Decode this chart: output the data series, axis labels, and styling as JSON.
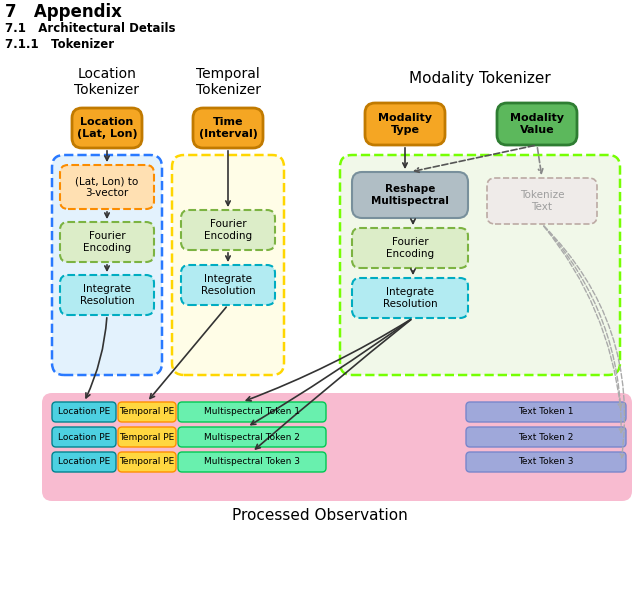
{
  "title_text": "7   Appendix",
  "subtitle1": "7.1   Architectural Details",
  "subtitle2": "7.1.1   Tokenizer",
  "loc_tok_title": "Location\nTokenizer",
  "temp_tok_title": "Temporal\nTokenizer",
  "mod_tok_title": "Modality Tokenizer",
  "loc_input_label": "Location\n(Lat, Lon)",
  "time_input_label": "Time\n(Interval)",
  "mod_type_label": "Modality\nType",
  "mod_val_label": "Modality\nValue",
  "loc_step1": "(Lat, Lon) to\n3-vector",
  "loc_step2": "Fourier\nEncoding",
  "loc_step3": "Integrate\nResolution",
  "temp_step1": "Fourier\nEncoding",
  "temp_step2": "Integrate\nResolution",
  "mod_step1": "Reshape\nMultispectral",
  "mod_step2": "Fourier\nEncoding",
  "mod_step3": "Integrate\nResolution",
  "mod_text_step": "Tokenize\nText",
  "proc_obs_label": "Processed Observation",
  "row_labels": [
    [
      "Location PE",
      "Temporal PE",
      "Multispectral Token 1"
    ],
    [
      "Location PE",
      "Temporal PE",
      "Multispectral Token 2"
    ],
    [
      "Location PE",
      "Temporal PE",
      "Multispectral Token 3"
    ]
  ],
  "text_tokens": [
    "Text Token 1",
    "Text Token 2",
    "Text Token 3"
  ],
  "color_orange": "#F5A623",
  "color_orange_edge": "#C17A00",
  "color_green_bright": "#5CB85C",
  "color_green_bright_edge": "#2E7D32",
  "color_cyan_box": "#B2EBF2",
  "color_cyan_edge": "#00ACC1",
  "color_light_green_box": "#DCEDC8",
  "color_light_green_edge": "#7CB342",
  "color_light_orange_box": "#FFE0B2",
  "color_light_orange_edge": "#FB8C00",
  "color_blue_outer": "#2979FF",
  "color_blue_outer_bg": "#E3F2FD",
  "color_yellow_outer": "#FFD600",
  "color_yellow_outer_bg": "#FFFDE7",
  "color_green_outer": "#76FF03",
  "color_green_outer_bg": "#F1F8E9",
  "color_gray_blue_box": "#B0BEC5",
  "color_gray_blue_edge": "#78909C",
  "color_tokenize_box": "#EFEBE9",
  "color_tokenize_edge": "#BCAAA4",
  "color_pink_bg": "#F8BBD0",
  "color_loc_pe": "#4DD0E1",
  "color_loc_pe_edge": "#00838F",
  "color_temp_pe": "#FFD740",
  "color_temp_pe_edge": "#FF8F00",
  "color_multi_green": "#69F0AE",
  "color_multi_green_edge": "#00C853",
  "color_text_token": "#9FA8DA",
  "color_text_token_edge": "#7986CB"
}
